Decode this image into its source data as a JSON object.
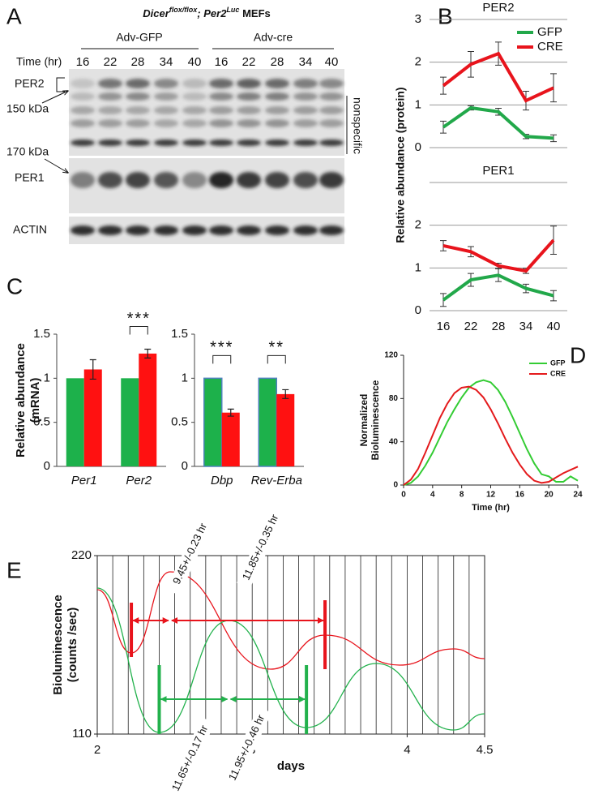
{
  "panel_labels": [
    "A",
    "B",
    "C",
    "D",
    "E"
  ],
  "blot": {
    "title_parts": [
      "Dicer",
      "flox/flox",
      "; Per2",
      "Luc",
      " MEFs"
    ],
    "groups": [
      "Adv-GFP",
      "Adv-cre"
    ],
    "time_label": "Time (hr)",
    "lanes": [
      "16",
      "22",
      "28",
      "34",
      "40",
      "16",
      "22",
      "28",
      "34",
      "40"
    ],
    "labels": {
      "per2": "PER2",
      "kda150": "150 kDa",
      "nonspecific": "nonspecific",
      "kda170": "170 kDa",
      "per1": "PER1",
      "actin": "ACTIN"
    }
  },
  "chart_data": [
    {
      "type": "line",
      "ylabel": "Relative abundance (protein)",
      "grid": true,
      "categories": [
        "16",
        "22",
        "28",
        "34",
        "40"
      ],
      "series": [
        {
          "name": "GFP",
          "color": "#22a84a"
        },
        {
          "name": "CRE",
          "color": "#e8141c"
        }
      ],
      "subplots": [
        {
          "title": "PER2",
          "ylim": [
            0,
            3
          ],
          "yticks": [
            0,
            1,
            2,
            3
          ],
          "values": [
            [
              0.48,
              0.93,
              0.84,
              0.26,
              0.22
            ],
            [
              1.45,
              1.95,
              2.2,
              1.1,
              1.4
            ]
          ],
          "errors": [
            [
              0.14,
              0.05,
              0.08,
              0.05,
              0.08
            ],
            [
              0.2,
              0.3,
              0.27,
              0.22,
              0.33
            ]
          ]
        },
        {
          "title": "PER1",
          "ylim": [
            0,
            3
          ],
          "yticks": [
            0,
            1,
            2
          ],
          "values": [
            [
              0.25,
              0.72,
              0.83,
              0.52,
              0.35
            ],
            [
              1.52,
              1.38,
              1.05,
              0.93,
              1.65
            ]
          ],
          "errors": [
            [
              0.15,
              0.15,
              0.15,
              0.1,
              0.12
            ],
            [
              0.12,
              0.12,
              0.06,
              0.06,
              0.33
            ]
          ]
        }
      ]
    },
    {
      "type": "bar",
      "ylabel": [
        "Relative abundance",
        "(mRNA)"
      ],
      "ylim": [
        0,
        1.5
      ],
      "yticks": [
        0,
        0.5,
        1,
        1.5
      ],
      "series": [
        {
          "color": "#1db14b"
        },
        {
          "color": "#ff1111"
        }
      ],
      "subplots": [
        {
          "categories": [
            "Per1",
            "Per2"
          ],
          "values": [
            [
              1,
              1
            ],
            [
              1.1,
              1.28
            ]
          ],
          "errors": [
            null,
            [
              0.11,
              0.05
            ]
          ],
          "significance": [
            null,
            "***"
          ]
        },
        {
          "categories": [
            "Dbp",
            "Rev-Erba"
          ],
          "values": [
            [
              1,
              1
            ],
            [
              0.61,
              0.82
            ]
          ],
          "errors": [
            null,
            [
              0.04,
              0.05
            ]
          ],
          "significance": [
            "***",
            "**"
          ],
          "edgecolor": "#4f81bd"
        }
      ]
    },
    {
      "type": "line",
      "ylabel": [
        "Normalized",
        "Bioluminescence"
      ],
      "xlabel": "Time (hr)",
      "x": [
        0,
        1,
        2,
        3,
        4,
        5,
        6,
        7,
        8,
        9,
        10,
        11,
        12,
        13,
        14,
        15,
        16,
        17,
        18,
        19,
        20,
        21,
        22,
        23,
        24
      ],
      "xlim": [
        0,
        24
      ],
      "ylim": [
        0,
        120
      ],
      "xticks": [
        0,
        4,
        8,
        12,
        16,
        20,
        24
      ],
      "yticks": [
        0,
        40,
        80,
        120
      ],
      "series": [
        {
          "name": "GFP",
          "color": "#33cc33",
          "values": [
            0,
            2,
            8,
            18,
            30,
            44,
            58,
            70,
            81,
            90,
            95,
            97,
            95,
            88,
            77,
            63,
            48,
            33,
            20,
            10,
            8,
            3,
            3,
            8,
            4
          ]
        },
        {
          "name": "CRE",
          "color": "#e41a1c",
          "values": [
            0,
            5,
            15,
            30,
            46,
            62,
            75,
            85,
            90,
            91,
            88,
            81,
            70,
            57,
            43,
            30,
            19,
            10,
            4,
            2,
            3,
            7,
            11,
            14,
            17
          ]
        }
      ]
    },
    {
      "type": "line",
      "ylabel": [
        "Bioluminescence",
        "(counts /sec)"
      ],
      "xlabel": "days",
      "smooth": true,
      "xlim": [
        2,
        4.5
      ],
      "ylim": [
        110,
        220
      ],
      "xticks": [
        2,
        3,
        4,
        4.5
      ],
      "yticks": [
        110,
        220
      ],
      "xgrid": [
        2,
        2.1,
        2.2,
        2.3,
        2.4,
        2.5,
        2.6,
        2.7,
        2.8,
        2.9,
        3,
        3.1,
        3.2,
        3.3,
        3.4,
        3.5,
        3.6,
        3.7,
        3.8,
        3.9,
        4,
        4.1,
        4.2,
        4.3,
        4.4,
        4.5
      ],
      "series": [
        {
          "color": "#e8141c",
          "x": [
            2,
            2.22,
            2.47,
            3.12,
            3.47,
            3.95,
            4.3,
            4.5
          ],
          "values": [
            199,
            160,
            210,
            150,
            171,
            152.5,
            162.5,
            156.5
          ]
        },
        {
          "color": "#22b14c",
          "x": [
            2,
            2.4,
            2.85,
            3.35,
            3.8,
            4.3,
            4.5
          ],
          "values": [
            200,
            111,
            180,
            114,
            153.5,
            112.5,
            122.5
          ]
        }
      ],
      "periods": [
        {
          "text": "9.45+/-0.23 hr",
          "color": "#e8141c"
        },
        {
          "text": "11.85+/-0.35 hr",
          "color": "#e8141c"
        },
        {
          "text": "11.65+/-0.17 hr",
          "color": "#22b14c"
        },
        {
          "text": "11.95+/-0.46 hr",
          "color": "#22b14c"
        }
      ]
    }
  ]
}
